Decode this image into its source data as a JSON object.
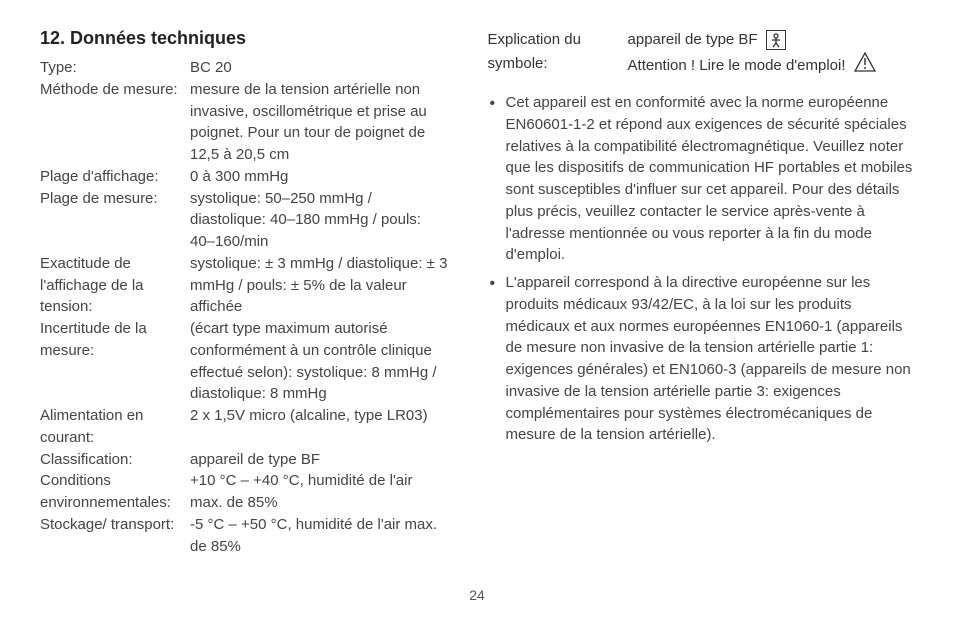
{
  "heading": "12. Données techniques",
  "specs": [
    {
      "label": "Type:",
      "value": "BC 20"
    },
    {
      "label": "Méthode de mesure:",
      "value": "mesure de la tension artérielle non invasive, oscillométrique et prise au poignet. Pour un tour de poignet de 12,5 à 20,5 cm"
    },
    {
      "label": "Plage d'affichage:",
      "value": "0 à 300 mmHg"
    },
    {
      "label": "Plage de mesure:",
      "value": "systolique: 50–250 mmHg / diastolique: 40–180 mmHg / pouls: 40–160/min"
    },
    {
      "label": "Exactitude de l'affichage de la tension:",
      "value": "systolique: ± 3 mmHg / diastolique: ± 3 mmHg / pouls: ± 5% de la valeur affichée"
    },
    {
      "label": "Incertitude de la mesure:",
      "value": "(écart type maximum autorisé conformément à un contrôle clinique effectué selon): systolique: 8 mmHg / diastolique: 8 mmHg"
    },
    {
      "label": "Alimentation en courant:",
      "value": "2 x 1,5V micro (alcaline, type LR03)"
    },
    {
      "label": "Classification:",
      "value": "appareil de type BF"
    },
    {
      "label": "Conditions environnementales:",
      "value": "+10 °C – +40 °C, humidité de l'air max. de 85%"
    },
    {
      "label": "Stockage/ transport:",
      "value": "-5 °C – +50 °C, humidité de l'air max. de 85%"
    }
  ],
  "symbolLabel": "Explication du symbole:",
  "symbolLine1": "appareil de type BF",
  "symbolLine2": "Attention ! Lire le mode d'emploi!",
  "bullets": [
    "Cet appareil est en conformité avec la norme européenne EN60601-1-2 et répond aux exigences de sécurité spéciales relatives à la compatibilité électromagnétique. Veuillez noter que les dispositifs de communication HF portables et mobiles sont susceptibles d'influer sur cet appareil. Pour des détails plus précis, veuillez contacter le service après-vente à l'adresse mentionnée ou vous reporter à la fin du mode d'emploi.",
    "L'appareil correspond à la directive européenne sur les produits médicaux 93/42/EC, à la loi sur les produits médicaux et aux normes européennes EN1060-1 (appareils de mesure non invasive de la tension artérielle partie 1: exigences générales) et EN1060-3 (appareils de mesure non invasive de la tension artérielle partie 3: exigences complémentaires pour systèmes électromécaniques de mesure de la tension artérielle)."
  ],
  "pageNumber": "24"
}
